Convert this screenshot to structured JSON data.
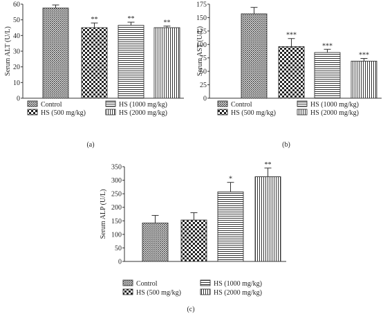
{
  "groups": [
    "Control",
    "HS (500 mg/kg)",
    "HS (1000 mg/kg)",
    "HS (2000 mg/kg)"
  ],
  "chart_data": [
    {
      "type": "bar",
      "panel_label": "(a)",
      "ylabel": "Serum ALT (U/L)",
      "ylim": [
        0,
        60
      ],
      "yticks": [
        0,
        10,
        20,
        30,
        40,
        50,
        60
      ],
      "categories": [
        "Control",
        "HS (500 mg/kg)",
        "HS (1000 mg/kg)",
        "HS (2000 mg/kg)"
      ],
      "values": [
        57.5,
        45,
        46.5,
        45
      ],
      "errors": [
        2,
        3,
        2,
        1
      ],
      "annotations": [
        "",
        "**",
        "**",
        "**"
      ]
    },
    {
      "type": "bar",
      "panel_label": "(b)",
      "ylabel": "Serum AST (U/L)",
      "ylim": [
        0,
        175
      ],
      "yticks": [
        0,
        25,
        50,
        75,
        100,
        125,
        150,
        175
      ],
      "categories": [
        "Control",
        "HS (500 mg/kg)",
        "HS (1000 mg/kg)",
        "HS (2000 mg/kg)"
      ],
      "values": [
        157,
        96,
        85,
        69
      ],
      "errors": [
        12,
        15,
        6,
        5
      ],
      "annotations": [
        "",
        "***",
        "***",
        "***"
      ]
    },
    {
      "type": "bar",
      "panel_label": "(c)",
      "ylabel": "Serum ALP (U/L)",
      "ylim": [
        0,
        350
      ],
      "yticks": [
        0,
        50,
        100,
        150,
        200,
        250,
        300,
        350
      ],
      "categories": [
        "Control",
        "HS (500 mg/kg)",
        "HS (1000 mg/kg)",
        "HS (2000 mg/kg)"
      ],
      "values": [
        142,
        153,
        257,
        313
      ],
      "errors": [
        28,
        27,
        35,
        32
      ],
      "annotations": [
        "",
        "",
        "*",
        "**"
      ]
    }
  ]
}
